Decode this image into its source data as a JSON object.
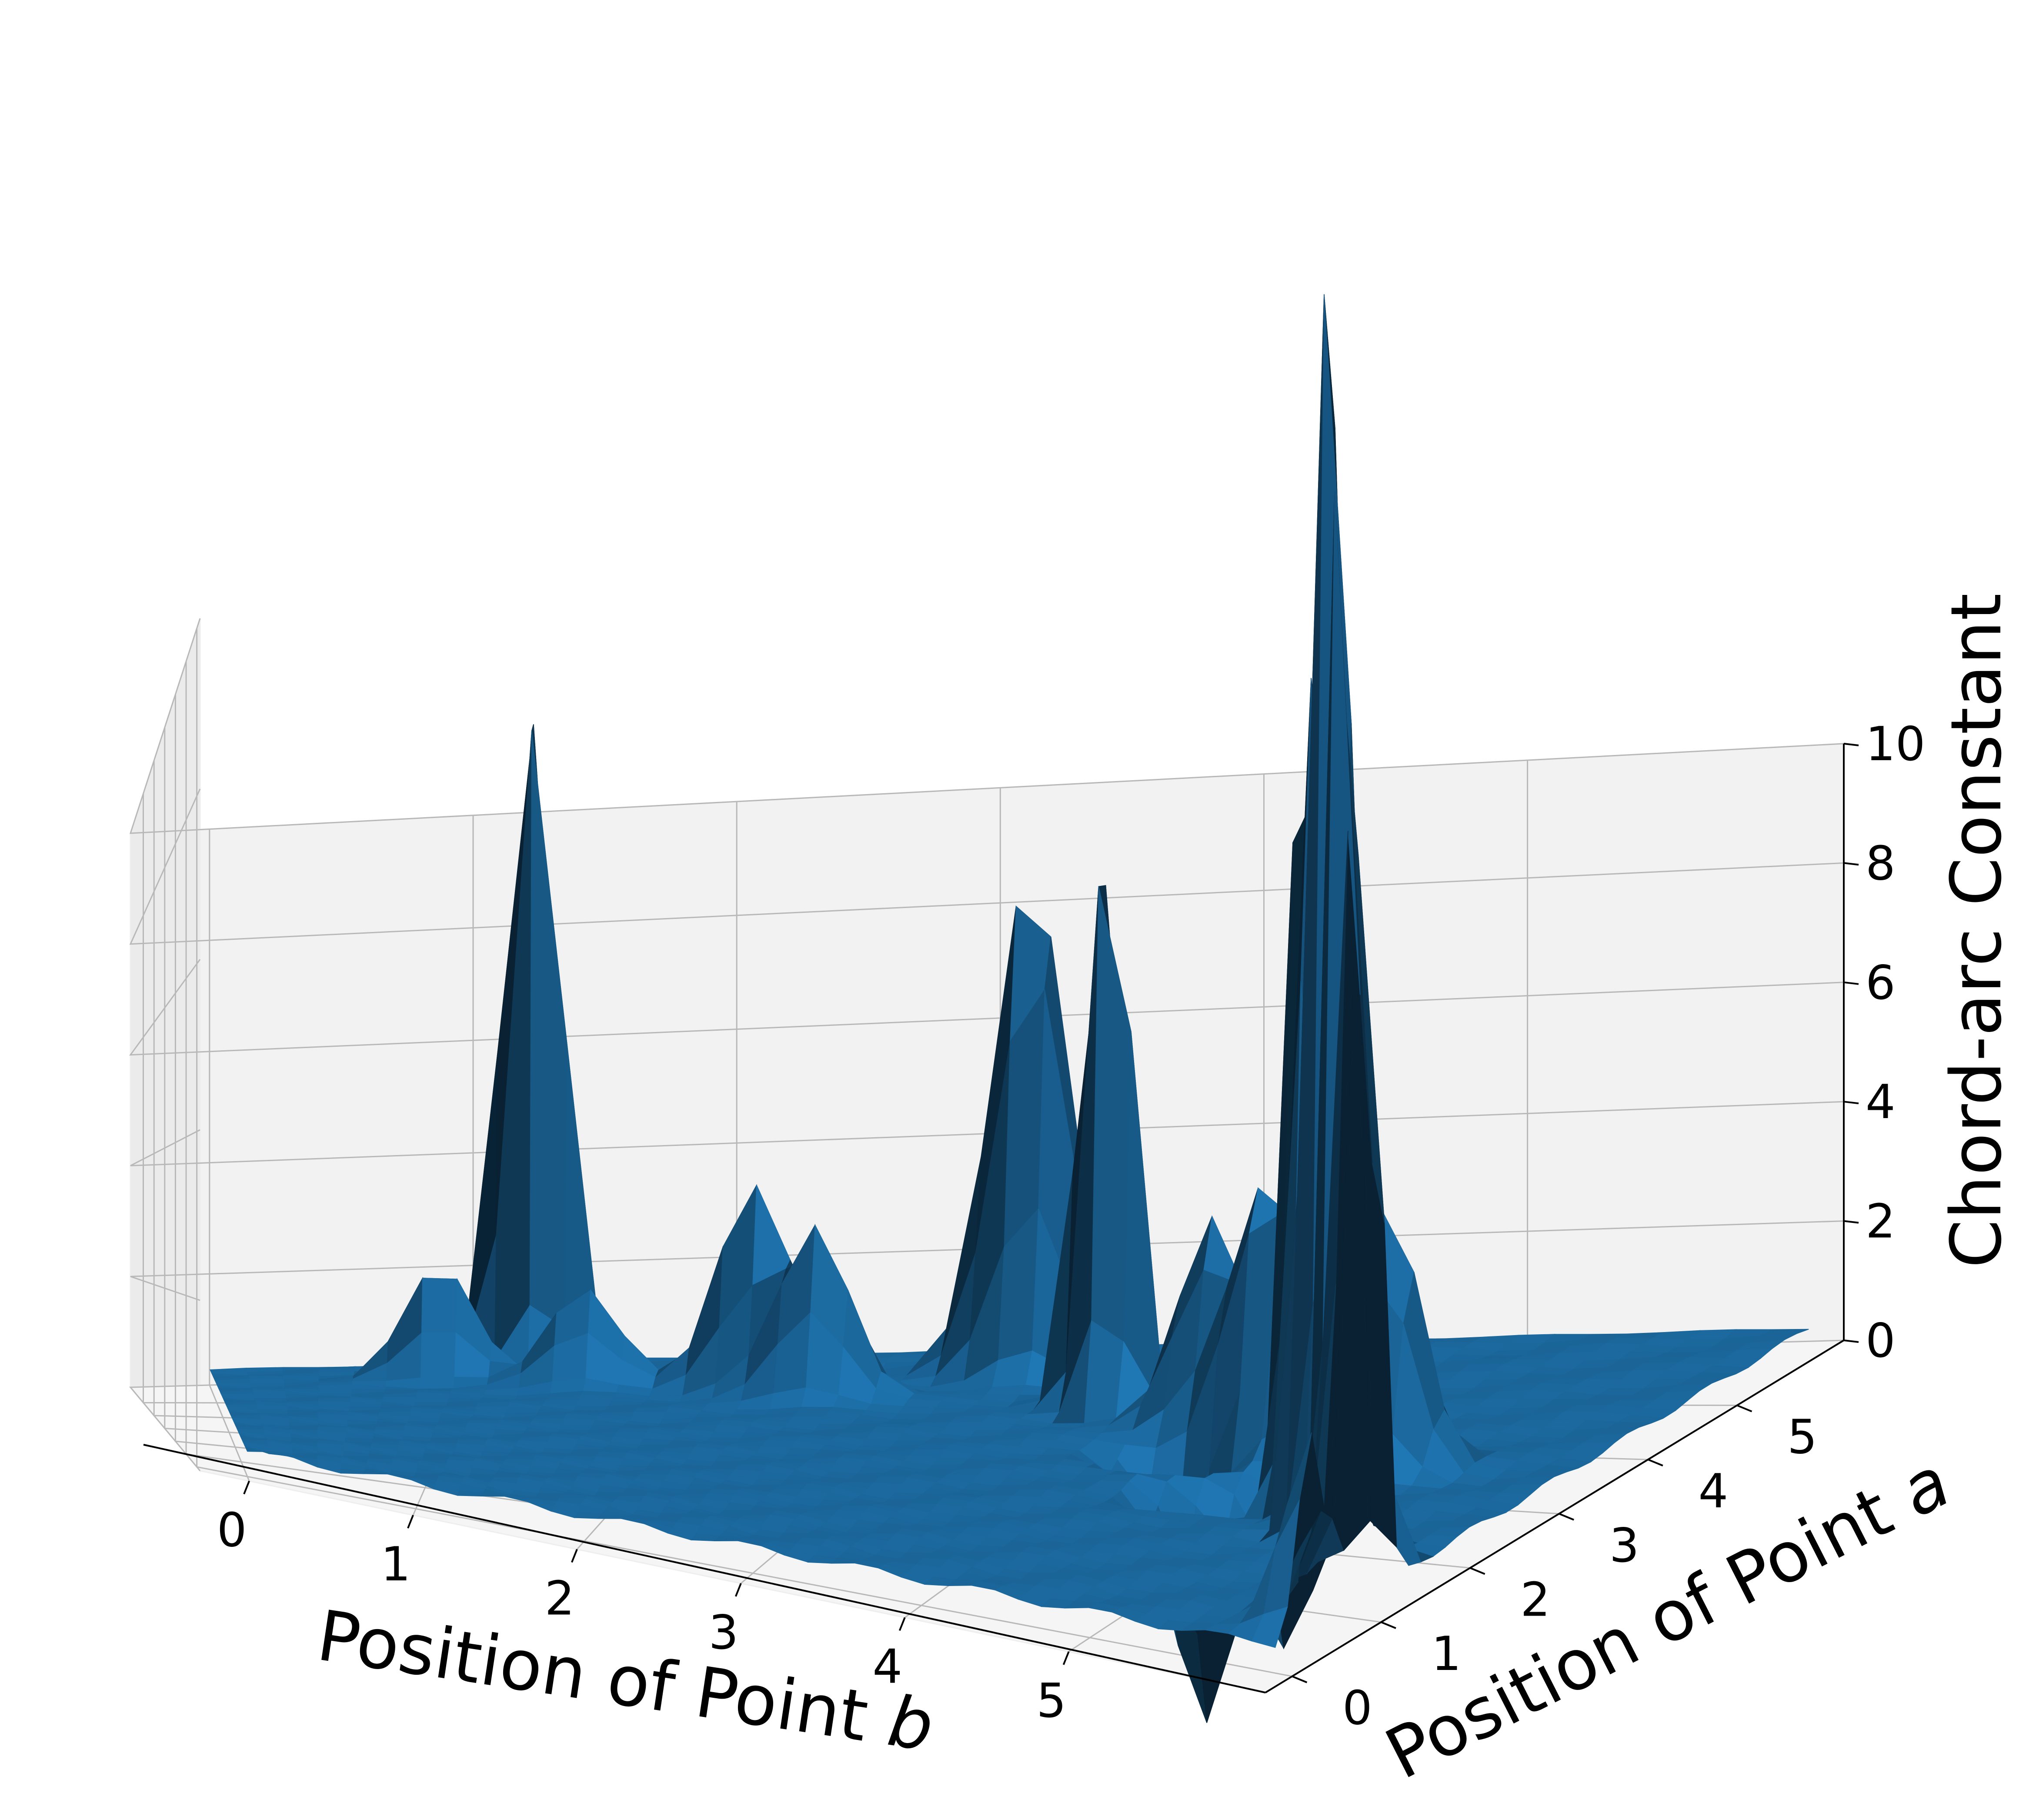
{
  "chart_data": {
    "type": "surface",
    "title": "",
    "xlabel": "Position of Point ",
    "xlabel_var": "b",
    "ylabel": "Position of Point ",
    "ylabel_var": "a",
    "zlabel": "Chord-arc Constant",
    "xlim": [
      -0.3,
      6.2
    ],
    "ylim": [
      -0.3,
      6.2
    ],
    "zlim": [
      0,
      10
    ],
    "x_ticks": [
      "0",
      "1",
      "2",
      "3",
      "4",
      "5"
    ],
    "y_ticks": [
      "0",
      "1",
      "2",
      "3",
      "4",
      "5"
    ],
    "z_ticks": [
      "0",
      "2",
      "4",
      "6",
      "8",
      "10"
    ],
    "grid": true,
    "surface_color": "#1f77b4",
    "pane_colors": [
      "#f2f2f2",
      "#ebebeb",
      "#f5f5f5"
    ],
    "peaks": [
      {
        "b": 1.2,
        "a": 5.8,
        "height": 11.0
      },
      {
        "b": 1.3,
        "a": 5.7,
        "height": 10.1
      },
      {
        "b": 0.9,
        "a": 5.3,
        "height": 1.9
      },
      {
        "b": 1.5,
        "a": 5.0,
        "height": 1.6
      },
      {
        "b": 2.2,
        "a": 4.9,
        "height": 3.4
      },
      {
        "b": 2.5,
        "a": 4.6,
        "height": 2.7
      },
      {
        "b": 3.2,
        "a": 5.5,
        "height": 5.7
      },
      {
        "b": 3.3,
        "a": 5.3,
        "height": 5.5
      },
      {
        "b": 3.7,
        "a": 4.5,
        "height": 10.2
      },
      {
        "b": 3.8,
        "a": 4.3,
        "height": 9.9
      },
      {
        "b": 4.3,
        "a": 4.0,
        "height": 3.1
      },
      {
        "b": 4.6,
        "a": 3.7,
        "height": 3.6
      },
      {
        "b": 4.9,
        "a": 3.6,
        "height": 3.0
      },
      {
        "b": 5.3,
        "a": 3.3,
        "height": 3.6
      },
      {
        "b": 5.2,
        "a": 2.5,
        "height": 13.3
      },
      {
        "b": 5.3,
        "a": 2.3,
        "height": 13.1
      },
      {
        "b": 5.5,
        "a": 1.9,
        "height": 15.6
      },
      {
        "b": 5.6,
        "a": 1.8,
        "height": 17.6
      },
      {
        "b": 5.8,
        "a": 1.6,
        "height": 9.8
      },
      {
        "b": 6.0,
        "a": 1.2,
        "height": 11.9
      },
      {
        "b": 6.0,
        "a": 1.0,
        "height": 15.7
      },
      {
        "b": 6.1,
        "a": 0.8,
        "height": 9.3
      },
      {
        "b": 6.1,
        "a": 0.4,
        "height": 2.2
      },
      {
        "b": 4.3,
        "a": 3.3,
        "height": -2.5
      },
      {
        "b": 4.7,
        "a": 2.5,
        "height": -3.0
      },
      {
        "b": 5.0,
        "a": 2.8,
        "height": -2.2
      }
    ]
  }
}
